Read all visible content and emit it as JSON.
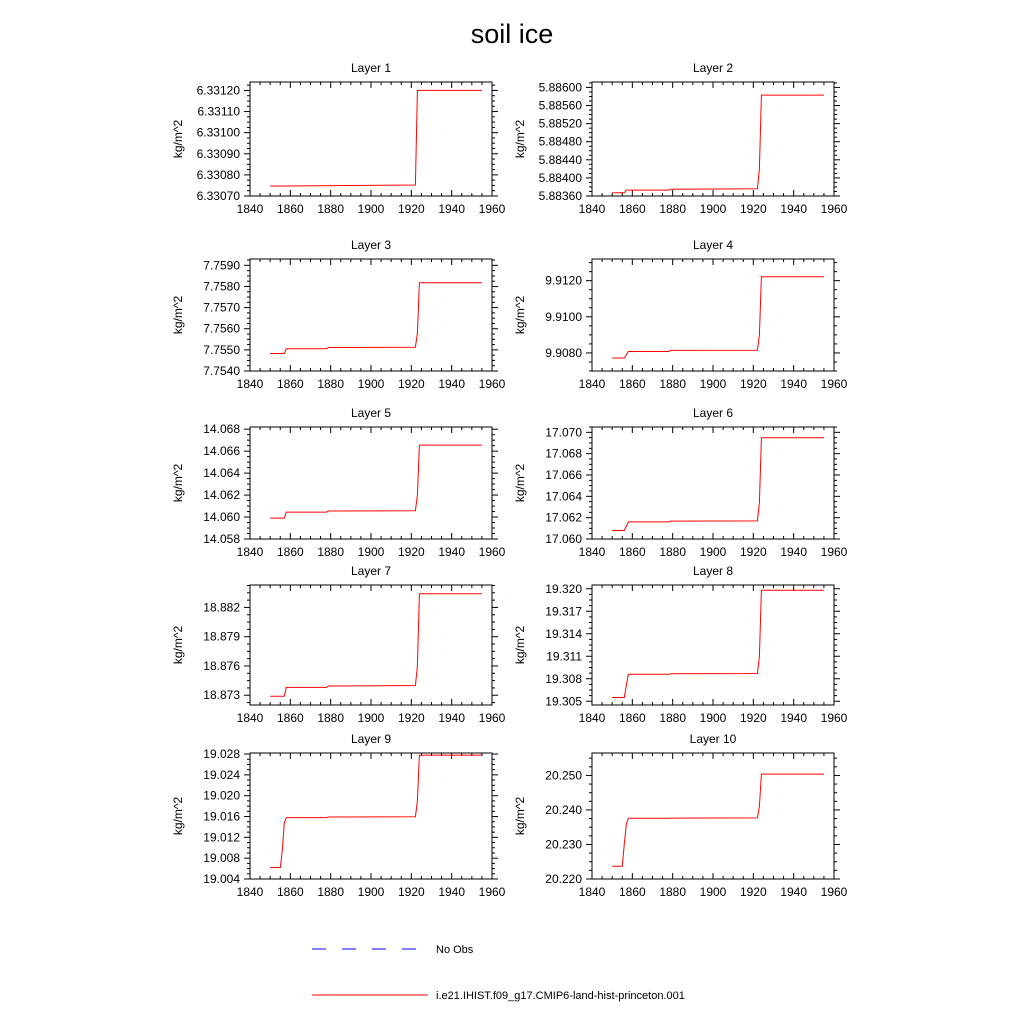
{
  "title": "soil ice",
  "colors": {
    "model_line": "#ff0000",
    "obs_line": "#0000ff",
    "axis": "#000000"
  },
  "legend": [
    {
      "label": "No Obs",
      "style": "dashed",
      "color": "#0000ff"
    },
    {
      "label": "i.e21.IHIST.f09_g17.CMIP6-land-hist-princeton.001",
      "style": "solid",
      "color": "#ff0000"
    }
  ],
  "chart_data": [
    {
      "type": "line",
      "title": "Layer 1",
      "ylabel": "kg/m^2",
      "xlim": [
        1840,
        1960
      ],
      "ylim": [
        6.3307,
        6.33124
      ],
      "xticks": [
        "1840",
        "1860",
        "1880",
        "1900",
        "1920",
        "1940",
        "1960"
      ],
      "yticks": [
        "6.33070",
        "6.33080",
        "6.33090",
        "6.33100",
        "6.33110",
        "6.33120"
      ],
      "series": [
        {
          "x": [
            1850,
            1922,
            1923,
            1955
          ],
          "values": [
            6.330747,
            6.330752,
            6.3312,
            6.3312
          ]
        }
      ]
    },
    {
      "type": "line",
      "title": "Layer 2",
      "ylabel": "kg/m^2",
      "xlim": [
        1840,
        1960
      ],
      "ylim": [
        5.8836,
        5.88612
      ],
      "xticks": [
        "1840",
        "1860",
        "1880",
        "1900",
        "1920",
        "1940",
        "1960"
      ],
      "yticks": [
        "5.88360",
        "5.88400",
        "5.88440",
        "5.88480",
        "5.88520",
        "5.88560",
        "5.88600"
      ],
      "series": [
        {
          "x": [
            1850,
            1856,
            1857,
            1878,
            1879,
            1922,
            1923,
            1924,
            1955
          ],
          "values": [
            5.88367,
            5.88367,
            5.88373,
            5.88373,
            5.88375,
            5.88376,
            5.8842,
            5.88583,
            5.88583
          ]
        }
      ]
    },
    {
      "type": "line",
      "title": "Layer 3",
      "ylabel": "kg/m^2",
      "xlim": [
        1840,
        1960
      ],
      "ylim": [
        7.754,
        7.7593
      ],
      "xticks": [
        "1840",
        "1860",
        "1880",
        "1900",
        "1920",
        "1940",
        "1960"
      ],
      "yticks": [
        "7.7540",
        "7.7550",
        "7.7560",
        "7.7570",
        "7.7580",
        "7.7590"
      ],
      "series": [
        {
          "x": [
            1850,
            1857,
            1858,
            1878,
            1879,
            1922,
            1923,
            1924,
            1955
          ],
          "values": [
            7.75483,
            7.75483,
            7.75505,
            7.75505,
            7.75511,
            7.75512,
            7.7558,
            7.75818,
            7.75818
          ]
        }
      ]
    },
    {
      "type": "line",
      "title": "Layer 4",
      "ylabel": "kg/m^2",
      "xlim": [
        1840,
        1960
      ],
      "ylim": [
        9.907,
        9.9132
      ],
      "xticks": [
        "1840",
        "1860",
        "1880",
        "1900",
        "1920",
        "1940",
        "1960"
      ],
      "yticks": [
        "9.9080",
        "9.9100",
        "9.9120"
      ],
      "series": [
        {
          "x": [
            1850,
            1856,
            1858,
            1878,
            1879,
            1922,
            1923,
            1924,
            1955
          ],
          "values": [
            9.90772,
            9.90772,
            9.90808,
            9.90808,
            9.90814,
            9.90815,
            9.909,
            9.91222,
            9.91222
          ]
        }
      ]
    },
    {
      "type": "line",
      "title": "Layer 5",
      "ylabel": "kg/m^2",
      "xlim": [
        1840,
        1960
      ],
      "ylim": [
        14.058,
        14.0682
      ],
      "xticks": [
        "1840",
        "1860",
        "1880",
        "1900",
        "1920",
        "1940",
        "1960"
      ],
      "yticks": [
        "14.058",
        "14.060",
        "14.062",
        "14.064",
        "14.066",
        "14.068"
      ],
      "series": [
        {
          "x": [
            1850,
            1857,
            1858,
            1878,
            1879,
            1922,
            1923,
            1924,
            1955
          ],
          "values": [
            14.0599,
            14.0599,
            14.06045,
            14.06045,
            14.06055,
            14.06057,
            14.062,
            14.06655,
            14.06655
          ]
        }
      ]
    },
    {
      "type": "line",
      "title": "Layer 6",
      "ylabel": "kg/m^2",
      "xlim": [
        1840,
        1960
      ],
      "ylim": [
        17.06,
        17.0705
      ],
      "xticks": [
        "1840",
        "1860",
        "1880",
        "1900",
        "1920",
        "1940",
        "1960"
      ],
      "yticks": [
        "17.060",
        "17.062",
        "17.064",
        "17.066",
        "17.068",
        "17.070"
      ],
      "series": [
        {
          "x": [
            1850,
            1856,
            1858,
            1878,
            1879,
            1922,
            1923,
            1924,
            1955
          ],
          "values": [
            17.0608,
            17.0608,
            17.0616,
            17.0616,
            17.06168,
            17.0617,
            17.0634,
            17.0695,
            17.0695
          ]
        }
      ]
    },
    {
      "type": "line",
      "title": "Layer 7",
      "ylabel": "kg/m^2",
      "xlim": [
        1840,
        1960
      ],
      "ylim": [
        18.872,
        18.8843
      ],
      "xticks": [
        "1840",
        "1860",
        "1880",
        "1900",
        "1920",
        "1940",
        "1960"
      ],
      "yticks": [
        "18.873",
        "18.876",
        "18.879",
        "18.882"
      ],
      "series": [
        {
          "x": [
            1850,
            1857,
            1858,
            1878,
            1879,
            1922,
            1923,
            1924,
            1955
          ],
          "values": [
            18.8729,
            18.8729,
            18.8738,
            18.8738,
            18.87395,
            18.874,
            18.876,
            18.8834,
            18.8834
          ]
        }
      ]
    },
    {
      "type": "line",
      "title": "Layer 8",
      "ylabel": "kg/m^2",
      "xlim": [
        1840,
        1960
      ],
      "ylim": [
        19.3045,
        19.3205
      ],
      "xticks": [
        "1840",
        "1860",
        "1880",
        "1900",
        "1920",
        "1940",
        "1960"
      ],
      "yticks": [
        "19.305",
        "19.308",
        "19.311",
        "19.314",
        "19.317",
        "19.320"
      ],
      "series": [
        {
          "x": [
            1850,
            1856,
            1858,
            1878,
            1879,
            1922,
            1923,
            1924,
            1955
          ],
          "values": [
            19.3055,
            19.3055,
            19.3086,
            19.3086,
            19.30868,
            19.3087,
            19.311,
            19.3198,
            19.3198
          ]
        }
      ]
    },
    {
      "type": "line",
      "title": "Layer 9",
      "ylabel": "kg/m^2",
      "xlim": [
        1840,
        1960
      ],
      "ylim": [
        19.004,
        19.0282
      ],
      "xticks": [
        "1840",
        "1860",
        "1880",
        "1900",
        "1920",
        "1940",
        "1960"
      ],
      "yticks": [
        "19.004",
        "19.008",
        "19.012",
        "19.016",
        "19.020",
        "19.024",
        "19.028"
      ],
      "series": [
        {
          "x": [
            1850,
            1855,
            1856,
            1857,
            1858,
            1878,
            1879,
            1922,
            1923,
            1924,
            1955
          ],
          "values": [
            19.0062,
            19.0062,
            19.0095,
            19.0148,
            19.0158,
            19.0158,
            19.0159,
            19.01595,
            19.019,
            19.0278,
            19.0278
          ]
        }
      ]
    },
    {
      "type": "line",
      "title": "Layer 10",
      "ylabel": "kg/m^2",
      "xlim": [
        1840,
        1960
      ],
      "ylim": [
        20.22,
        20.2565
      ],
      "xticks": [
        "1840",
        "1860",
        "1880",
        "1900",
        "1920",
        "1940",
        "1960"
      ],
      "yticks": [
        "20.220",
        "20.230",
        "20.240",
        "20.250"
      ],
      "series": [
        {
          "x": [
            1850,
            1855,
            1856,
            1857,
            1858,
            1878,
            1879,
            1922,
            1923,
            1924,
            1955
          ],
          "values": [
            20.2237,
            20.2237,
            20.2302,
            20.2358,
            20.2376,
            20.2376,
            20.23765,
            20.2377,
            20.241,
            20.2504,
            20.2504
          ]
        }
      ]
    }
  ]
}
